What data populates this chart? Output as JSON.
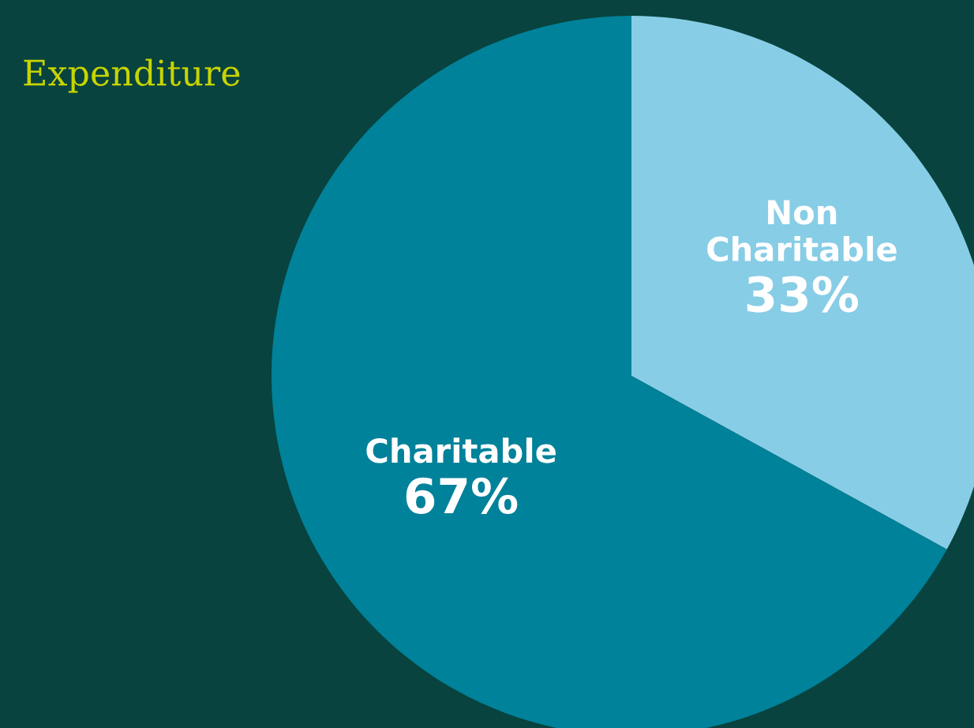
{
  "chart_data": {
    "type": "pie",
    "title": "Expenditure",
    "categories": [
      "Non Charitable",
      "Charitable"
    ],
    "values": [
      33,
      67
    ],
    "value_labels": [
      "33%",
      "67%"
    ],
    "colors": [
      "#87cde6",
      "#00829a"
    ],
    "legend": false
  }
}
